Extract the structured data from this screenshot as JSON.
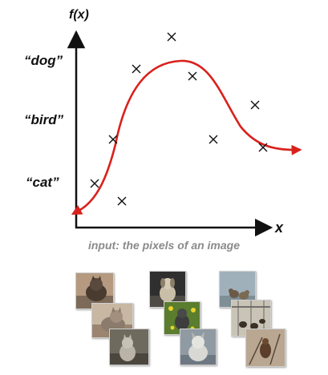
{
  "axes": {
    "y_label": "f(x)",
    "x_label": "x"
  },
  "y_categories": [
    "“dog”",
    "“bird”",
    "“cat”"
  ],
  "caption": "input: the pixels of an image",
  "colors": {
    "curve": "#d9211c",
    "axis": "#111111",
    "marker": "#111111",
    "caption": "#8a8a8a"
  },
  "thumbnail_groups": [
    {
      "name": "cat-photos",
      "count": 3
    },
    {
      "name": "dog-photos",
      "count": 3
    },
    {
      "name": "bird-photos",
      "count": 3
    }
  ]
}
